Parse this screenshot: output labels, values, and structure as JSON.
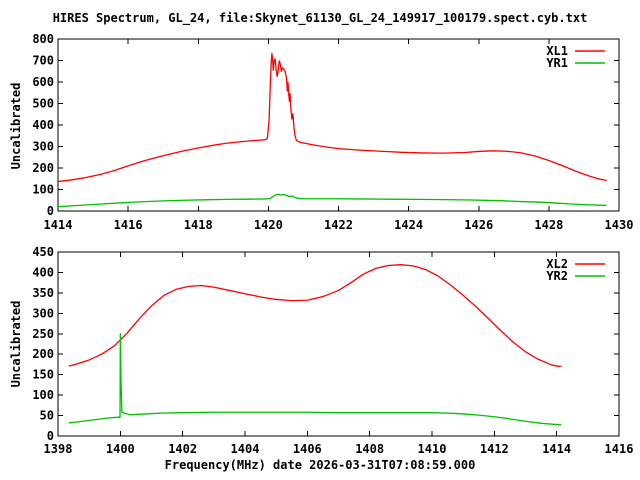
{
  "title": "HIRES Spectrum, GL_24, file:Skynet_61130_GL_24_149917_100179.spect.cyb.txt",
  "xlabel": "Frequency(MHz) date 2026-03-31T07:08:59.000",
  "colors": {
    "background": "#ffffff",
    "axis": "#000000",
    "series_red": "#ff0000",
    "series_green": "#00c000"
  },
  "chart_data": [
    {
      "type": "line",
      "panel": "top",
      "ylabel": "Uncalibrated",
      "xlim": [
        1414,
        1430
      ],
      "ylim": [
        0,
        800
      ],
      "xticks": [
        1414,
        1416,
        1418,
        1420,
        1422,
        1424,
        1426,
        1428,
        1430
      ],
      "yticks": [
        0,
        100,
        200,
        300,
        400,
        500,
        600,
        700,
        800
      ],
      "grid": false,
      "legend_position": "top-right",
      "series": [
        {
          "name": "XL1",
          "color": "#ff0000",
          "points": [
            [
              1414.0,
              137
            ],
            [
              1414.4,
              145
            ],
            [
              1414.8,
              156
            ],
            [
              1415.2,
              170
            ],
            [
              1415.6,
              188
            ],
            [
              1416.0,
              210
            ],
            [
              1416.4,
              231
            ],
            [
              1416.8,
              249
            ],
            [
              1417.2,
              265
            ],
            [
              1417.6,
              280
            ],
            [
              1418.0,
              293
            ],
            [
              1418.4,
              305
            ],
            [
              1418.8,
              315
            ],
            [
              1419.2,
              322
            ],
            [
              1419.6,
              328
            ],
            [
              1419.9,
              331
            ],
            [
              1419.97,
              337
            ],
            [
              1420.02,
              420
            ],
            [
              1420.05,
              565
            ],
            [
              1420.08,
              685
            ],
            [
              1420.1,
              733
            ],
            [
              1420.12,
              710
            ],
            [
              1420.14,
              655
            ],
            [
              1420.16,
              693
            ],
            [
              1420.19,
              708
            ],
            [
              1420.22,
              660
            ],
            [
              1420.25,
              626
            ],
            [
              1420.28,
              652
            ],
            [
              1420.31,
              698
            ],
            [
              1420.34,
              683
            ],
            [
              1420.37,
              650
            ],
            [
              1420.4,
              666
            ],
            [
              1420.44,
              660
            ],
            [
              1420.48,
              648
            ],
            [
              1420.52,
              615
            ],
            [
              1420.54,
              558
            ],
            [
              1420.56,
              598
            ],
            [
              1420.58,
              543
            ],
            [
              1420.6,
              510
            ],
            [
              1420.62,
              545
            ],
            [
              1420.64,
              478
            ],
            [
              1420.67,
              428
            ],
            [
              1420.7,
              452
            ],
            [
              1420.73,
              388
            ],
            [
              1420.76,
              350
            ],
            [
              1420.8,
              328
            ],
            [
              1420.9,
              320
            ],
            [
              1421.2,
              310
            ],
            [
              1421.6,
              299
            ],
            [
              1422.0,
              290
            ],
            [
              1422.6,
              283
            ],
            [
              1423.2,
              278
            ],
            [
              1423.8,
              273
            ],
            [
              1424.4,
              270
            ],
            [
              1425.0,
              269
            ],
            [
              1425.6,
              272
            ],
            [
              1426.0,
              277
            ],
            [
              1426.4,
              280
            ],
            [
              1426.8,
              278
            ],
            [
              1427.2,
              271
            ],
            [
              1427.6,
              256
            ],
            [
              1428.0,
              235
            ],
            [
              1428.4,
              210
            ],
            [
              1428.8,
              183
            ],
            [
              1429.2,
              160
            ],
            [
              1429.45,
              148
            ],
            [
              1429.65,
              142
            ]
          ]
        },
        {
          "name": "YR1",
          "color": "#00c000",
          "points": [
            [
              1414.0,
              20
            ],
            [
              1414.6,
              26
            ],
            [
              1415.2,
              32
            ],
            [
              1415.8,
              38
            ],
            [
              1416.4,
              43
            ],
            [
              1417.0,
              47
            ],
            [
              1417.6,
              50
            ],
            [
              1418.2,
              52
            ],
            [
              1418.8,
              54
            ],
            [
              1419.4,
              55
            ],
            [
              1419.9,
              56
            ],
            [
              1420.05,
              58
            ],
            [
              1420.12,
              66
            ],
            [
              1420.2,
              74
            ],
            [
              1420.28,
              78
            ],
            [
              1420.36,
              74
            ],
            [
              1420.44,
              77
            ],
            [
              1420.52,
              72
            ],
            [
              1420.6,
              67
            ],
            [
              1420.68,
              70
            ],
            [
              1420.76,
              63
            ],
            [
              1420.85,
              59
            ],
            [
              1421.0,
              57
            ],
            [
              1421.8,
              57
            ],
            [
              1422.6,
              56
            ],
            [
              1423.4,
              55
            ],
            [
              1424.2,
              54
            ],
            [
              1425.0,
              53
            ],
            [
              1425.8,
              51
            ],
            [
              1426.6,
              48
            ],
            [
              1427.2,
              44
            ],
            [
              1427.8,
              41
            ],
            [
              1428.2,
              37
            ],
            [
              1428.7,
              32
            ],
            [
              1429.1,
              29
            ],
            [
              1429.45,
              27
            ],
            [
              1429.65,
              26
            ]
          ]
        }
      ]
    },
    {
      "type": "line",
      "panel": "bottom",
      "ylabel": "Uncalibrated",
      "xlim": [
        1398,
        1416
      ],
      "ylim": [
        0,
        450
      ],
      "xticks": [
        1398,
        1400,
        1402,
        1404,
        1406,
        1408,
        1410,
        1412,
        1414,
        1416
      ],
      "yticks": [
        0,
        50,
        100,
        150,
        200,
        250,
        300,
        350,
        400,
        450
      ],
      "grid": false,
      "legend_position": "top-right",
      "series": [
        {
          "name": "XL2",
          "color": "#ff0000",
          "points": [
            [
              1398.35,
              171
            ],
            [
              1398.6,
              176
            ],
            [
              1399.0,
              186
            ],
            [
              1399.4,
              200
            ],
            [
              1399.8,
              220
            ],
            [
              1400.2,
              250
            ],
            [
              1400.6,
              286
            ],
            [
              1401.0,
              318
            ],
            [
              1401.4,
              344
            ],
            [
              1401.8,
              359
            ],
            [
              1402.2,
              366
            ],
            [
              1402.6,
              368
            ],
            [
              1403.0,
              364
            ],
            [
              1403.5,
              356
            ],
            [
              1404.0,
              348
            ],
            [
              1404.5,
              340
            ],
            [
              1405.0,
              334
            ],
            [
              1405.5,
              331
            ],
            [
              1406.0,
              332
            ],
            [
              1406.5,
              341
            ],
            [
              1407.0,
              356
            ],
            [
              1407.4,
              375
            ],
            [
              1407.8,
              396
            ],
            [
              1408.2,
              410
            ],
            [
              1408.6,
              417
            ],
            [
              1409.0,
              419
            ],
            [
              1409.4,
              416
            ],
            [
              1409.8,
              407
            ],
            [
              1410.2,
              391
            ],
            [
              1410.6,
              369
            ],
            [
              1411.0,
              344
            ],
            [
              1411.4,
              317
            ],
            [
              1411.8,
              288
            ],
            [
              1412.2,
              258
            ],
            [
              1412.6,
              230
            ],
            [
              1413.0,
              206
            ],
            [
              1413.4,
              188
            ],
            [
              1413.8,
              175
            ],
            [
              1414.0,
              171
            ],
            [
              1414.15,
              170
            ]
          ]
        },
        {
          "name": "YR2",
          "color": "#00c000",
          "points": [
            [
              1398.35,
              32
            ],
            [
              1398.8,
              36
            ],
            [
              1399.2,
              40
            ],
            [
              1399.6,
              44
            ],
            [
              1399.95,
              46
            ],
            [
              1399.99,
              46
            ],
            [
              1400.0,
              250
            ],
            [
              1400.02,
              140
            ],
            [
              1400.05,
              58
            ],
            [
              1400.3,
              52
            ],
            [
              1400.8,
              54
            ],
            [
              1401.3,
              56
            ],
            [
              1402.0,
              57
            ],
            [
              1403.0,
              58
            ],
            [
              1404.0,
              58
            ],
            [
              1405.0,
              58
            ],
            [
              1406.0,
              58
            ],
            [
              1407.0,
              57
            ],
            [
              1408.0,
              57
            ],
            [
              1409.0,
              57
            ],
            [
              1410.0,
              57
            ],
            [
              1410.5,
              56
            ],
            [
              1411.0,
              54
            ],
            [
              1411.5,
              51
            ],
            [
              1412.0,
              47
            ],
            [
              1412.5,
              42
            ],
            [
              1413.0,
              36
            ],
            [
              1413.5,
              31
            ],
            [
              1414.0,
              28
            ],
            [
              1414.15,
              27
            ]
          ]
        }
      ]
    }
  ]
}
